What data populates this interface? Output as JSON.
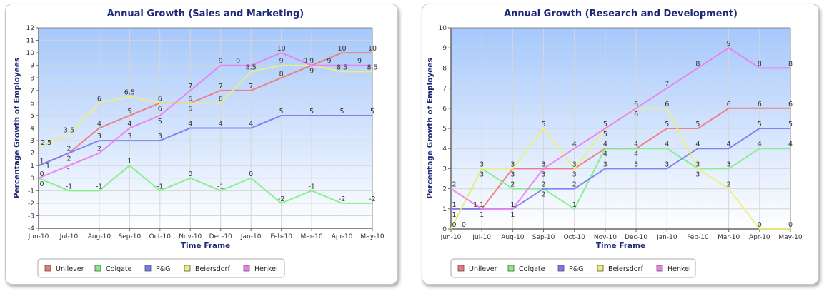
{
  "chart_data": [
    {
      "type": "line",
      "title": "Annual Growth (Sales and Marketing)",
      "xlabel": "Time Frame",
      "ylabel": "Percentage Growth of Employees",
      "ylim": [
        -4,
        12
      ],
      "ystep": 1,
      "grid": true,
      "legend_position": "bottom-left",
      "categories": [
        "Jun-10",
        "Jul-10",
        "Aug-10",
        "Sep-10",
        "Oct-10",
        "Nov-10",
        "Dec-10",
        "Jan-10",
        "Feb-10",
        "Mar-10",
        "Apr-10",
        "May-10"
      ],
      "series": [
        {
          "name": "Unilever",
          "color": "#ee7777",
          "values": [
            1,
            2,
            4,
            5,
            6,
            6,
            7,
            7,
            8,
            9,
            10,
            10
          ]
        },
        {
          "name": "Colgate",
          "color": "#7ef07e",
          "values": [
            0,
            -1,
            -1,
            1,
            -1,
            0,
            -1,
            0,
            -2,
            -1,
            -2,
            -2
          ]
        },
        {
          "name": "P&G",
          "color": "#7878f4",
          "values": [
            1,
            2,
            3,
            3,
            3,
            4,
            4,
            4,
            5,
            5,
            5,
            5
          ]
        },
        {
          "name": "Beiersdorf",
          "color": "#eeee7a",
          "values": [
            2.5,
            3.5,
            6,
            6.5,
            6,
            6,
            6,
            8.5,
            9,
            9,
            8.5,
            8.5
          ]
        },
        {
          "name": "Henkel",
          "color": "#ee7aee",
          "values": [
            0,
            1,
            2,
            4,
            5,
            7,
            9,
            9,
            10,
            9,
            9,
            9
          ]
        }
      ]
    },
    {
      "type": "line",
      "title": "Annual Growth (Research and Development)",
      "xlabel": "Time Frame",
      "ylabel": "Percentage Growth of Employees",
      "ylim": [
        0,
        10
      ],
      "ystep": 1,
      "grid": true,
      "legend_position": "bottom-left",
      "categories": [
        "Jun-10",
        "Jul-10",
        "Aug-10",
        "Sep-10",
        "Oct-10",
        "Nov-10",
        "Dec-10",
        "Jan-10",
        "Feb-10",
        "Mar-10",
        "Apr-10",
        "May-10"
      ],
      "series": [
        {
          "name": "Unilever",
          "color": "#ee7777",
          "values": [
            1,
            1,
            3,
            3,
            3,
            4,
            4,
            5,
            5,
            6,
            6,
            6
          ]
        },
        {
          "name": "Colgate",
          "color": "#7ef07e",
          "values": [
            0,
            3,
            2,
            2,
            1,
            4,
            4,
            4,
            3,
            3,
            4,
            4
          ]
        },
        {
          "name": "P&G",
          "color": "#7878f4",
          "values": [
            1,
            1,
            1,
            2,
            2,
            3,
            3,
            3,
            4,
            4,
            5,
            5
          ]
        },
        {
          "name": "Beiersdorf",
          "color": "#eeee7a",
          "values": [
            0,
            3,
            3,
            5,
            3,
            5,
            6,
            6,
            3,
            2,
            0,
            0
          ]
        },
        {
          "name": "Henkel",
          "color": "#ee7aee",
          "values": [
            2,
            1,
            1,
            3,
            4,
            5,
            6,
            7,
            8,
            9,
            8,
            8
          ]
        }
      ]
    }
  ]
}
